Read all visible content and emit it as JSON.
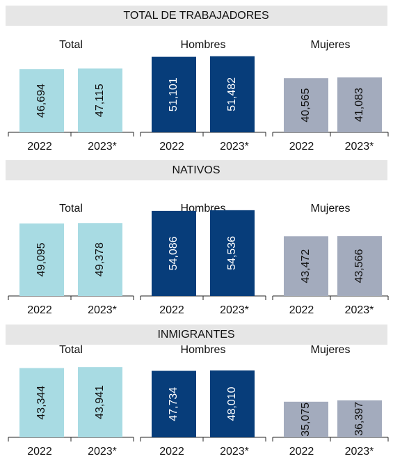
{
  "sections": [
    {
      "title": "TOTAL DE TRABAJADORES"
    },
    {
      "title": "NATIVOS"
    },
    {
      "title": "INMIGRANTES"
    }
  ],
  "chart_data": [
    {
      "type": "bar",
      "title": "Total",
      "categories": [
        "2022",
        "2023*"
      ],
      "values": [
        46694,
        47115
      ],
      "value_labels": [
        "46,694",
        "47,115"
      ],
      "color": "#a8dbe3",
      "label_color": "#111111",
      "ylim": [
        0,
        72000
      ]
    },
    {
      "type": "bar",
      "title": "Hombres",
      "categories": [
        "2022",
        "2023*"
      ],
      "values": [
        51101,
        51482
      ],
      "value_labels": [
        "51,101",
        "51,482"
      ],
      "color": "#073d7a",
      "label_color": "#ffffff",
      "ylim": [
        0,
        66000
      ]
    },
    {
      "type": "bar",
      "title": "Mujeres",
      "categories": [
        "2022",
        "2023*"
      ],
      "values": [
        40565,
        41083
      ],
      "value_labels": [
        "40,565",
        "41,083"
      ],
      "color": "#a3abbd",
      "label_color": "#111111",
      "ylim": [
        0,
        73000
      ]
    },
    {
      "type": "bar",
      "title": "Total",
      "categories": [
        "2022",
        "2023*"
      ],
      "values": [
        49095,
        49378
      ],
      "value_labels": [
        "49,095",
        "49,378"
      ],
      "color": "#a8dbe3",
      "label_color": "#111111",
      "ylim": [
        0,
        66000
      ]
    },
    {
      "type": "bar",
      "title": "Hombres",
      "categories": [
        "2022",
        "2023*"
      ],
      "values": [
        54086,
        54536
      ],
      "value_labels": [
        "54,086",
        "54,536"
      ],
      "color": "#073d7a",
      "label_color": "#ffffff",
      "ylim": [
        0,
        62000
      ]
    },
    {
      "type": "bar",
      "title": "Mujeres",
      "categories": [
        "2022",
        "2023*"
      ],
      "values": [
        43472,
        43566
      ],
      "value_labels": [
        "43,472",
        "43,566"
      ],
      "color": "#a3abbd",
      "label_color": "#111111",
      "ylim": [
        0,
        71000
      ]
    },
    {
      "type": "bar",
      "title": "Total",
      "categories": [
        "2022",
        "2023*"
      ],
      "values": [
        43344,
        43941
      ],
      "value_labels": [
        "43,344",
        "43,941"
      ],
      "color": "#a8dbe3",
      "label_color": "#111111",
      "ylim": [
        0,
        61000
      ]
    },
    {
      "type": "bar",
      "title": "Hombres",
      "categories": [
        "2022",
        "2023*"
      ],
      "values": [
        47734,
        48010
      ],
      "value_labels": [
        "47,734",
        "48,010"
      ],
      "color": "#073d7a",
      "label_color": "#ffffff",
      "ylim": [
        0,
        70000
      ]
    },
    {
      "type": "bar",
      "title": "Mujeres",
      "categories": [
        "2022",
        "2023*"
      ],
      "values": [
        35075,
        36397
      ],
      "value_labels": [
        "35,075",
        "36,397"
      ],
      "color": "#a3abbd",
      "label_color": "#111111",
      "ylim": [
        0,
        96000
      ]
    }
  ]
}
